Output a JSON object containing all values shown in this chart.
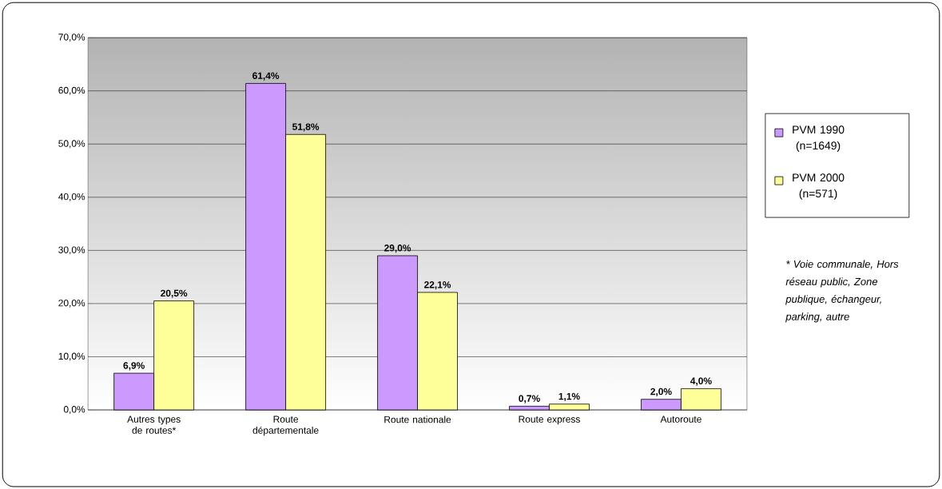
{
  "chart_data": {
    "type": "bar",
    "categories": [
      "Autres types de routes*",
      "Route départementale",
      "Route nationale",
      "Route express",
      "Autoroute"
    ],
    "series": [
      {
        "name": "PVM 1990 (n=1649)",
        "color": "#cc99ff",
        "values": [
          6.9,
          61.4,
          29.0,
          0.7,
          2.0
        ],
        "value_labels": [
          "6,9%",
          "61,4%",
          "29,0%",
          "0,7%",
          "2,0%"
        ]
      },
      {
        "name": "PVM 2000 (n=571)",
        "color": "#ffff99",
        "values": [
          20.5,
          51.8,
          22.1,
          1.1,
          4.0
        ],
        "value_labels": [
          "20,5%",
          "51,8%",
          "22,1%",
          "1,1%",
          "4,0%"
        ]
      }
    ],
    "ylim": [
      0,
      70
    ],
    "yticks": [
      {
        "value": 0,
        "label": "0,0%"
      },
      {
        "value": 10,
        "label": "10,0%"
      },
      {
        "value": 20,
        "label": "20,0%"
      },
      {
        "value": 30,
        "label": "30,0%"
      },
      {
        "value": 40,
        "label": "40,0%"
      },
      {
        "value": 50,
        "label": "50,0%"
      },
      {
        "value": 60,
        "label": "60,0%"
      },
      {
        "value": 70,
        "label": "70,0%"
      }
    ],
    "grid": "y",
    "legend": "right",
    "annotations": [
      "* Voie communale, Hors réseau public, Zone publique, échangeur, parking, autre"
    ]
  }
}
